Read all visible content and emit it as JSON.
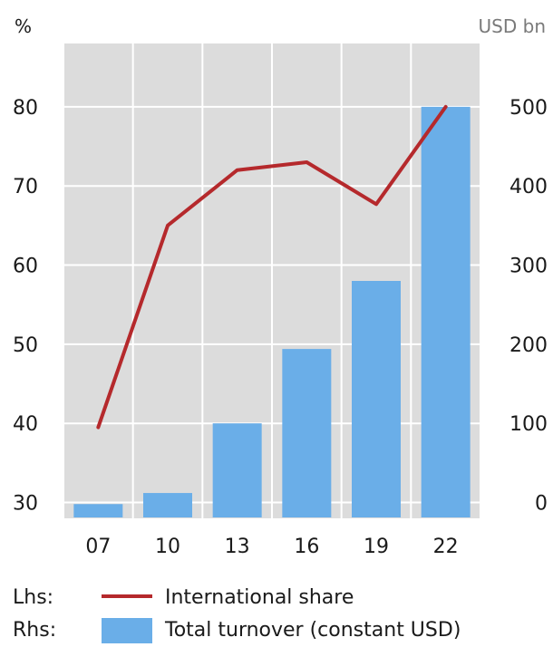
{
  "chart_data": {
    "type": "bar+line",
    "categories": [
      "07",
      "10",
      "13",
      "16",
      "19",
      "22"
    ],
    "left_axis": {
      "unit": "%",
      "ticks": [
        30,
        40,
        50,
        60,
        70,
        80
      ],
      "range": [
        28,
        88
      ]
    },
    "right_axis": {
      "unit": "USD bn",
      "ticks": [
        0,
        100,
        200,
        300,
        400,
        500
      ],
      "range": [
        -20,
        580
      ]
    },
    "series": [
      {
        "name": "International share",
        "kind": "line",
        "axis": "left",
        "color": "#b5292c",
        "legend_prefix": "Lhs:",
        "values": [
          39.5,
          65,
          72,
          73,
          67.7,
          80
        ]
      },
      {
        "name": "Total turnover (constant USD)",
        "kind": "bar",
        "axis": "right",
        "color": "#6aaee8",
        "legend_prefix": "Rhs:",
        "values": [
          -2,
          12,
          100,
          194,
          280,
          500
        ]
      }
    ],
    "grid": true,
    "legend_placement": "bottom-left",
    "plot_background": "#dcdcdc",
    "grid_color": "#ffffff"
  }
}
